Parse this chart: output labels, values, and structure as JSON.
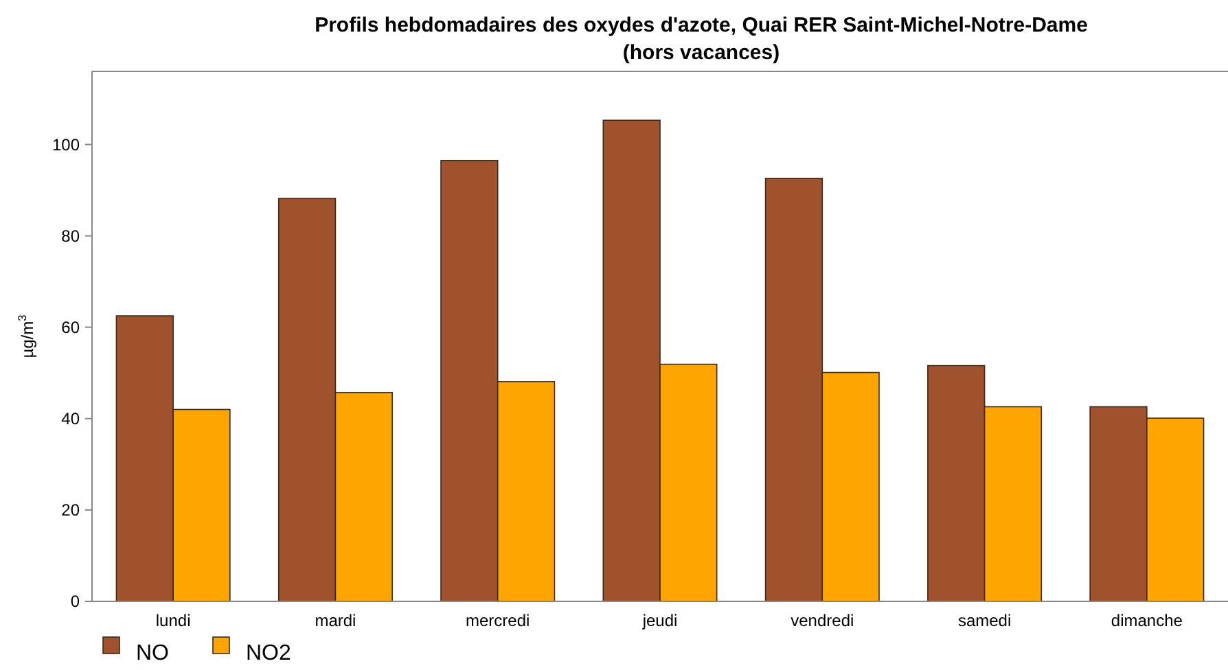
{
  "chart_data": {
    "type": "bar",
    "title": "Profils hebdomadaires des oxydes d'azote, Quai RER Saint-Michel-Notre-Dame",
    "subtitle": "(hors vacances)",
    "ylabel": "µg/m$^{3}$",
    "categories": [
      "lundi",
      "mardi",
      "mercredi",
      "jeudi",
      "vendredi",
      "samedi",
      "dimanche"
    ],
    "series": [
      {
        "name": "NO",
        "color": "#a0522d",
        "values": [
          62.5,
          88.2,
          96.5,
          105.3,
          92.6,
          51.6,
          42.6
        ]
      },
      {
        "name": "NO2",
        "color": "#ffa500",
        "values": [
          42.0,
          45.7,
          48.1,
          51.9,
          50.1,
          42.6,
          40.1
        ]
      }
    ],
    "ylim": [
      0,
      116
    ],
    "yticks": [
      0,
      20,
      40,
      60,
      80,
      100
    ],
    "grid": false,
    "legend": "bottom left"
  }
}
